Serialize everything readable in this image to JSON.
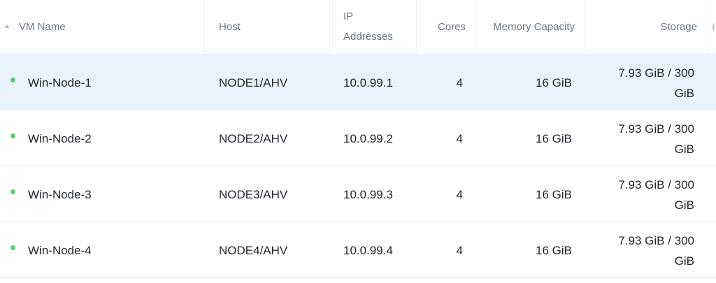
{
  "columns": {
    "vm_name": "VM Name",
    "host": "Host",
    "ip_line1": "IP",
    "ip_line2": "Addresses",
    "cores": "Cores",
    "memory": "Memory Capacity",
    "storage": "Storage"
  },
  "sort": {
    "column": "VM Name",
    "direction": "ascending",
    "icon": "sort-ascending-icon"
  },
  "status_color": "#5fcc6a",
  "selected_row_color": "#e9f3fd",
  "rows": [
    {
      "name": "Win-Node-1",
      "host": "NODE1/AHV",
      "ip": "10.0.99.1",
      "cores": "4",
      "memory": "16 GiB",
      "storage_line1": "7.93 GiB / 300",
      "storage_line2": "GiB",
      "status": "on",
      "selected": true
    },
    {
      "name": "Win-Node-2",
      "host": "NODE2/AHV",
      "ip": "10.0.99.2",
      "cores": "4",
      "memory": "16 GiB",
      "storage_line1": "7.93 GiB / 300",
      "storage_line2": "GiB",
      "status": "on",
      "selected": false
    },
    {
      "name": "Win-Node-3",
      "host": "NODE3/AHV",
      "ip": "10.0.99.3",
      "cores": "4",
      "memory": "16 GiB",
      "storage_line1": "7.93 GiB / 300",
      "storage_line2": "GiB",
      "status": "on",
      "selected": false
    },
    {
      "name": "Win-Node-4",
      "host": "NODE4/AHV",
      "ip": "10.0.99.4",
      "cores": "4",
      "memory": "16 GiB",
      "storage_line1": "7.93 GiB / 300",
      "storage_line2": "GiB",
      "status": "on",
      "selected": false
    }
  ]
}
